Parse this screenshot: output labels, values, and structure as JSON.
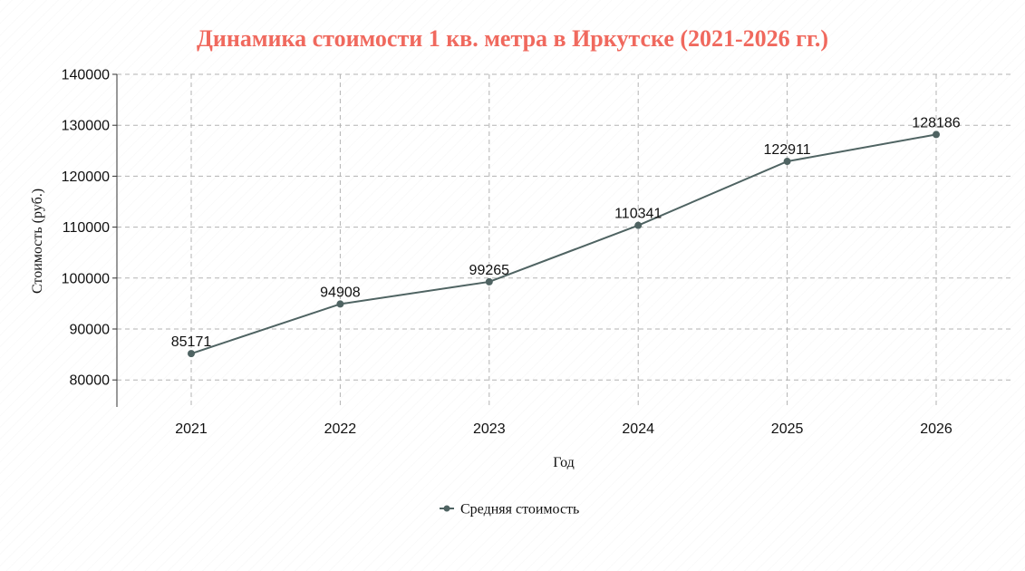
{
  "chart_data": {
    "type": "line",
    "title": "Динамика стоимости 1 кв. метра в Иркутске (2021-2026 гг.)",
    "xlabel": "Год",
    "ylabel": "Стоимость (руб.)",
    "categories": [
      "2021",
      "2022",
      "2023",
      "2024",
      "2025",
      "2026"
    ],
    "series": [
      {
        "name": "Средняя стоимость",
        "values": [
          85171,
          94908,
          99265,
          110341,
          122911,
          128186
        ],
        "color": "#4f6362"
      }
    ],
    "yticks": [
      80000,
      90000,
      100000,
      110000,
      120000,
      130000,
      140000
    ],
    "ylim": [
      75000,
      140000
    ],
    "grid": true,
    "legend_position": "bottom-center",
    "title_color": "#f0695e",
    "grid_color": "#b3b3b3",
    "axis_color": "#333333"
  }
}
